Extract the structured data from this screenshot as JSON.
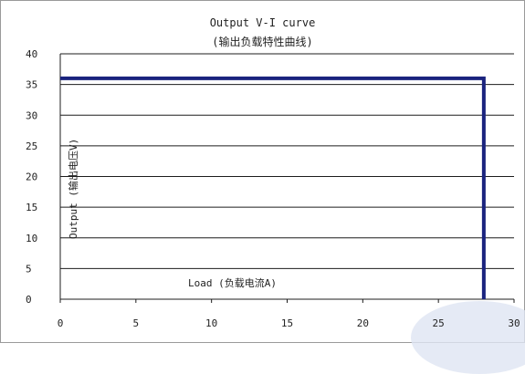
{
  "chart_data": {
    "type": "line",
    "title": "Output V-I curve",
    "subtitle": "(输出负载特性曲线)",
    "xlabel": "Load (负载电流A)",
    "ylabel": "Output (输出电压V)",
    "xlim": [
      0,
      30
    ],
    "ylim": [
      0,
      40
    ],
    "x_ticks": [
      0,
      5,
      10,
      15,
      20,
      25,
      30
    ],
    "y_ticks": [
      0,
      5,
      10,
      15,
      20,
      25,
      30,
      35,
      40
    ],
    "grid": true,
    "series": [
      {
        "x": [
          0,
          28,
          28
        ],
        "y": [
          36,
          36,
          0
        ],
        "color": "#1a237e"
      }
    ]
  }
}
